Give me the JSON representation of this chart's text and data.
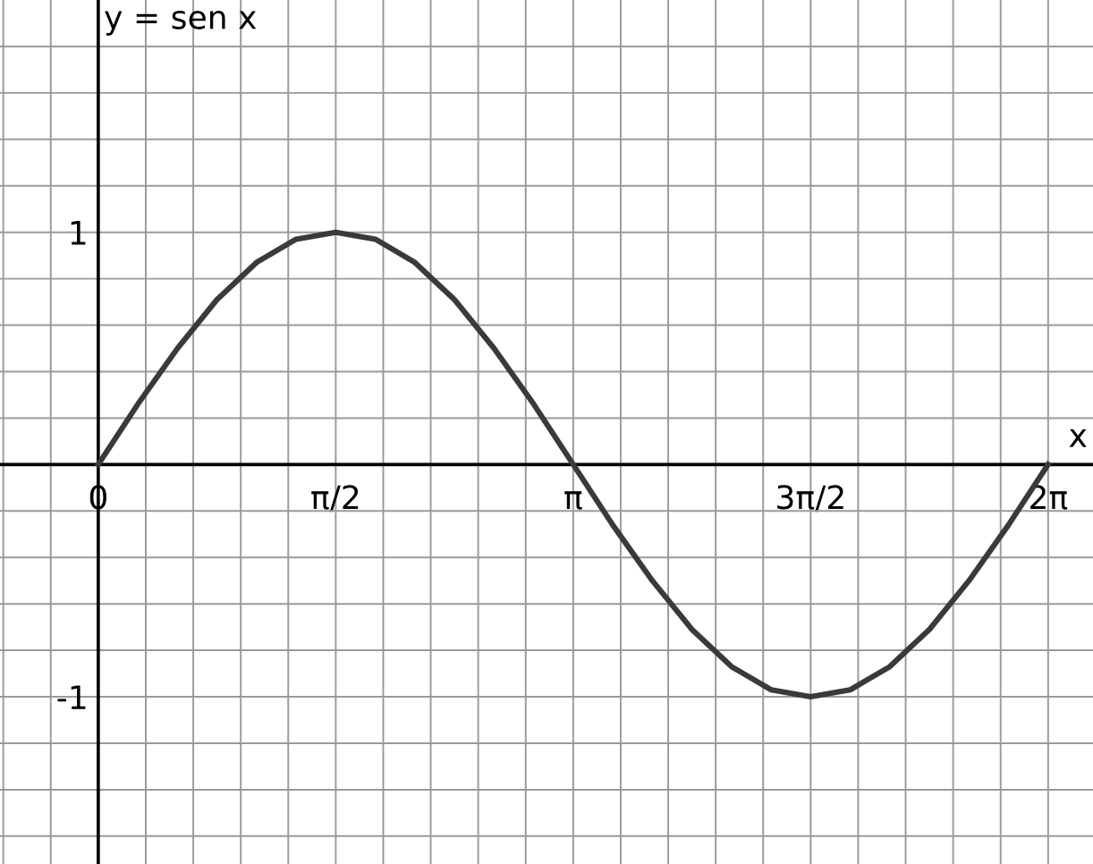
{
  "chart_data": {
    "type": "line",
    "ylabel": "y = sen x",
    "xlabel": "x",
    "x": [
      0,
      0.262,
      0.524,
      0.785,
      1.047,
      1.309,
      1.571,
      1.833,
      2.094,
      2.356,
      2.618,
      2.88,
      3.142,
      3.403,
      3.665,
      3.927,
      4.189,
      4.451,
      4.712,
      4.974,
      5.236,
      5.498,
      5.76,
      6.021,
      6.283
    ],
    "series": [
      {
        "color": "#3a3a3a",
        "values": [
          0,
          0.26,
          0.5,
          0.71,
          0.87,
          0.97,
          1,
          0.97,
          0.87,
          0.71,
          0.5,
          0.26,
          0,
          -0.26,
          -0.5,
          -0.71,
          -0.87,
          -0.97,
          -1,
          -0.97,
          -0.87,
          -0.71,
          -0.5,
          -0.26,
          0
        ]
      }
    ],
    "xlim": [
      -0.65,
      6.58
    ],
    "ylim": [
      -1.72,
      2.0
    ],
    "xticks": [
      {
        "value": -0.6283,
        "label": null
      },
      {
        "value": -0.3142,
        "label": null
      },
      0,
      {
        "value": 0.3142,
        "label": null
      },
      {
        "value": 0.6283,
        "label": null
      },
      {
        "value": 0.9425,
        "label": null
      },
      {
        "value": 1.2566,
        "label": null
      },
      {
        "value": 1.5708,
        "label": "π/2"
      },
      {
        "value": 1.885,
        "label": null
      },
      {
        "value": 2.1991,
        "label": null
      },
      {
        "value": 2.5133,
        "label": null
      },
      {
        "value": 2.8274,
        "label": null
      },
      {
        "value": 3.1416,
        "label": "π"
      },
      {
        "value": 3.4558,
        "label": null
      },
      {
        "value": 3.7699,
        "label": null
      },
      {
        "value": 4.0841,
        "label": null
      },
      {
        "value": 4.3982,
        "label": null
      },
      {
        "value": 4.7124,
        "label": "3π/2"
      },
      {
        "value": 5.0265,
        "label": null
      },
      {
        "value": 5.3407,
        "label": null
      },
      {
        "value": 5.6549,
        "label": null
      },
      {
        "value": 5.969,
        "label": null
      },
      {
        "value": 6.2832,
        "label": "2π"
      }
    ],
    "yticks": [
      {
        "value": -1.6,
        "label": null
      },
      {
        "value": -1.4,
        "label": null
      },
      {
        "value": -1.2,
        "label": null
      },
      {
        "value": -1,
        "label": "-1"
      },
      {
        "value": -0.8,
        "label": null
      },
      {
        "value": -0.6,
        "label": null
      },
      {
        "value": -0.4,
        "label": null
      },
      {
        "value": -0.2,
        "label": null
      },
      {
        "value": 0.2,
        "label": null
      },
      {
        "value": 0.4,
        "label": null
      },
      {
        "value": 0.6,
        "label": null
      },
      {
        "value": 0.8,
        "label": null
      },
      1,
      {
        "value": 1.2,
        "label": null
      },
      {
        "value": 1.4,
        "label": null
      },
      {
        "value": 1.6,
        "label": null
      },
      {
        "value": 1.8,
        "label": null
      }
    ],
    "grid": true,
    "marker": "none",
    "line_style": "solid"
  }
}
